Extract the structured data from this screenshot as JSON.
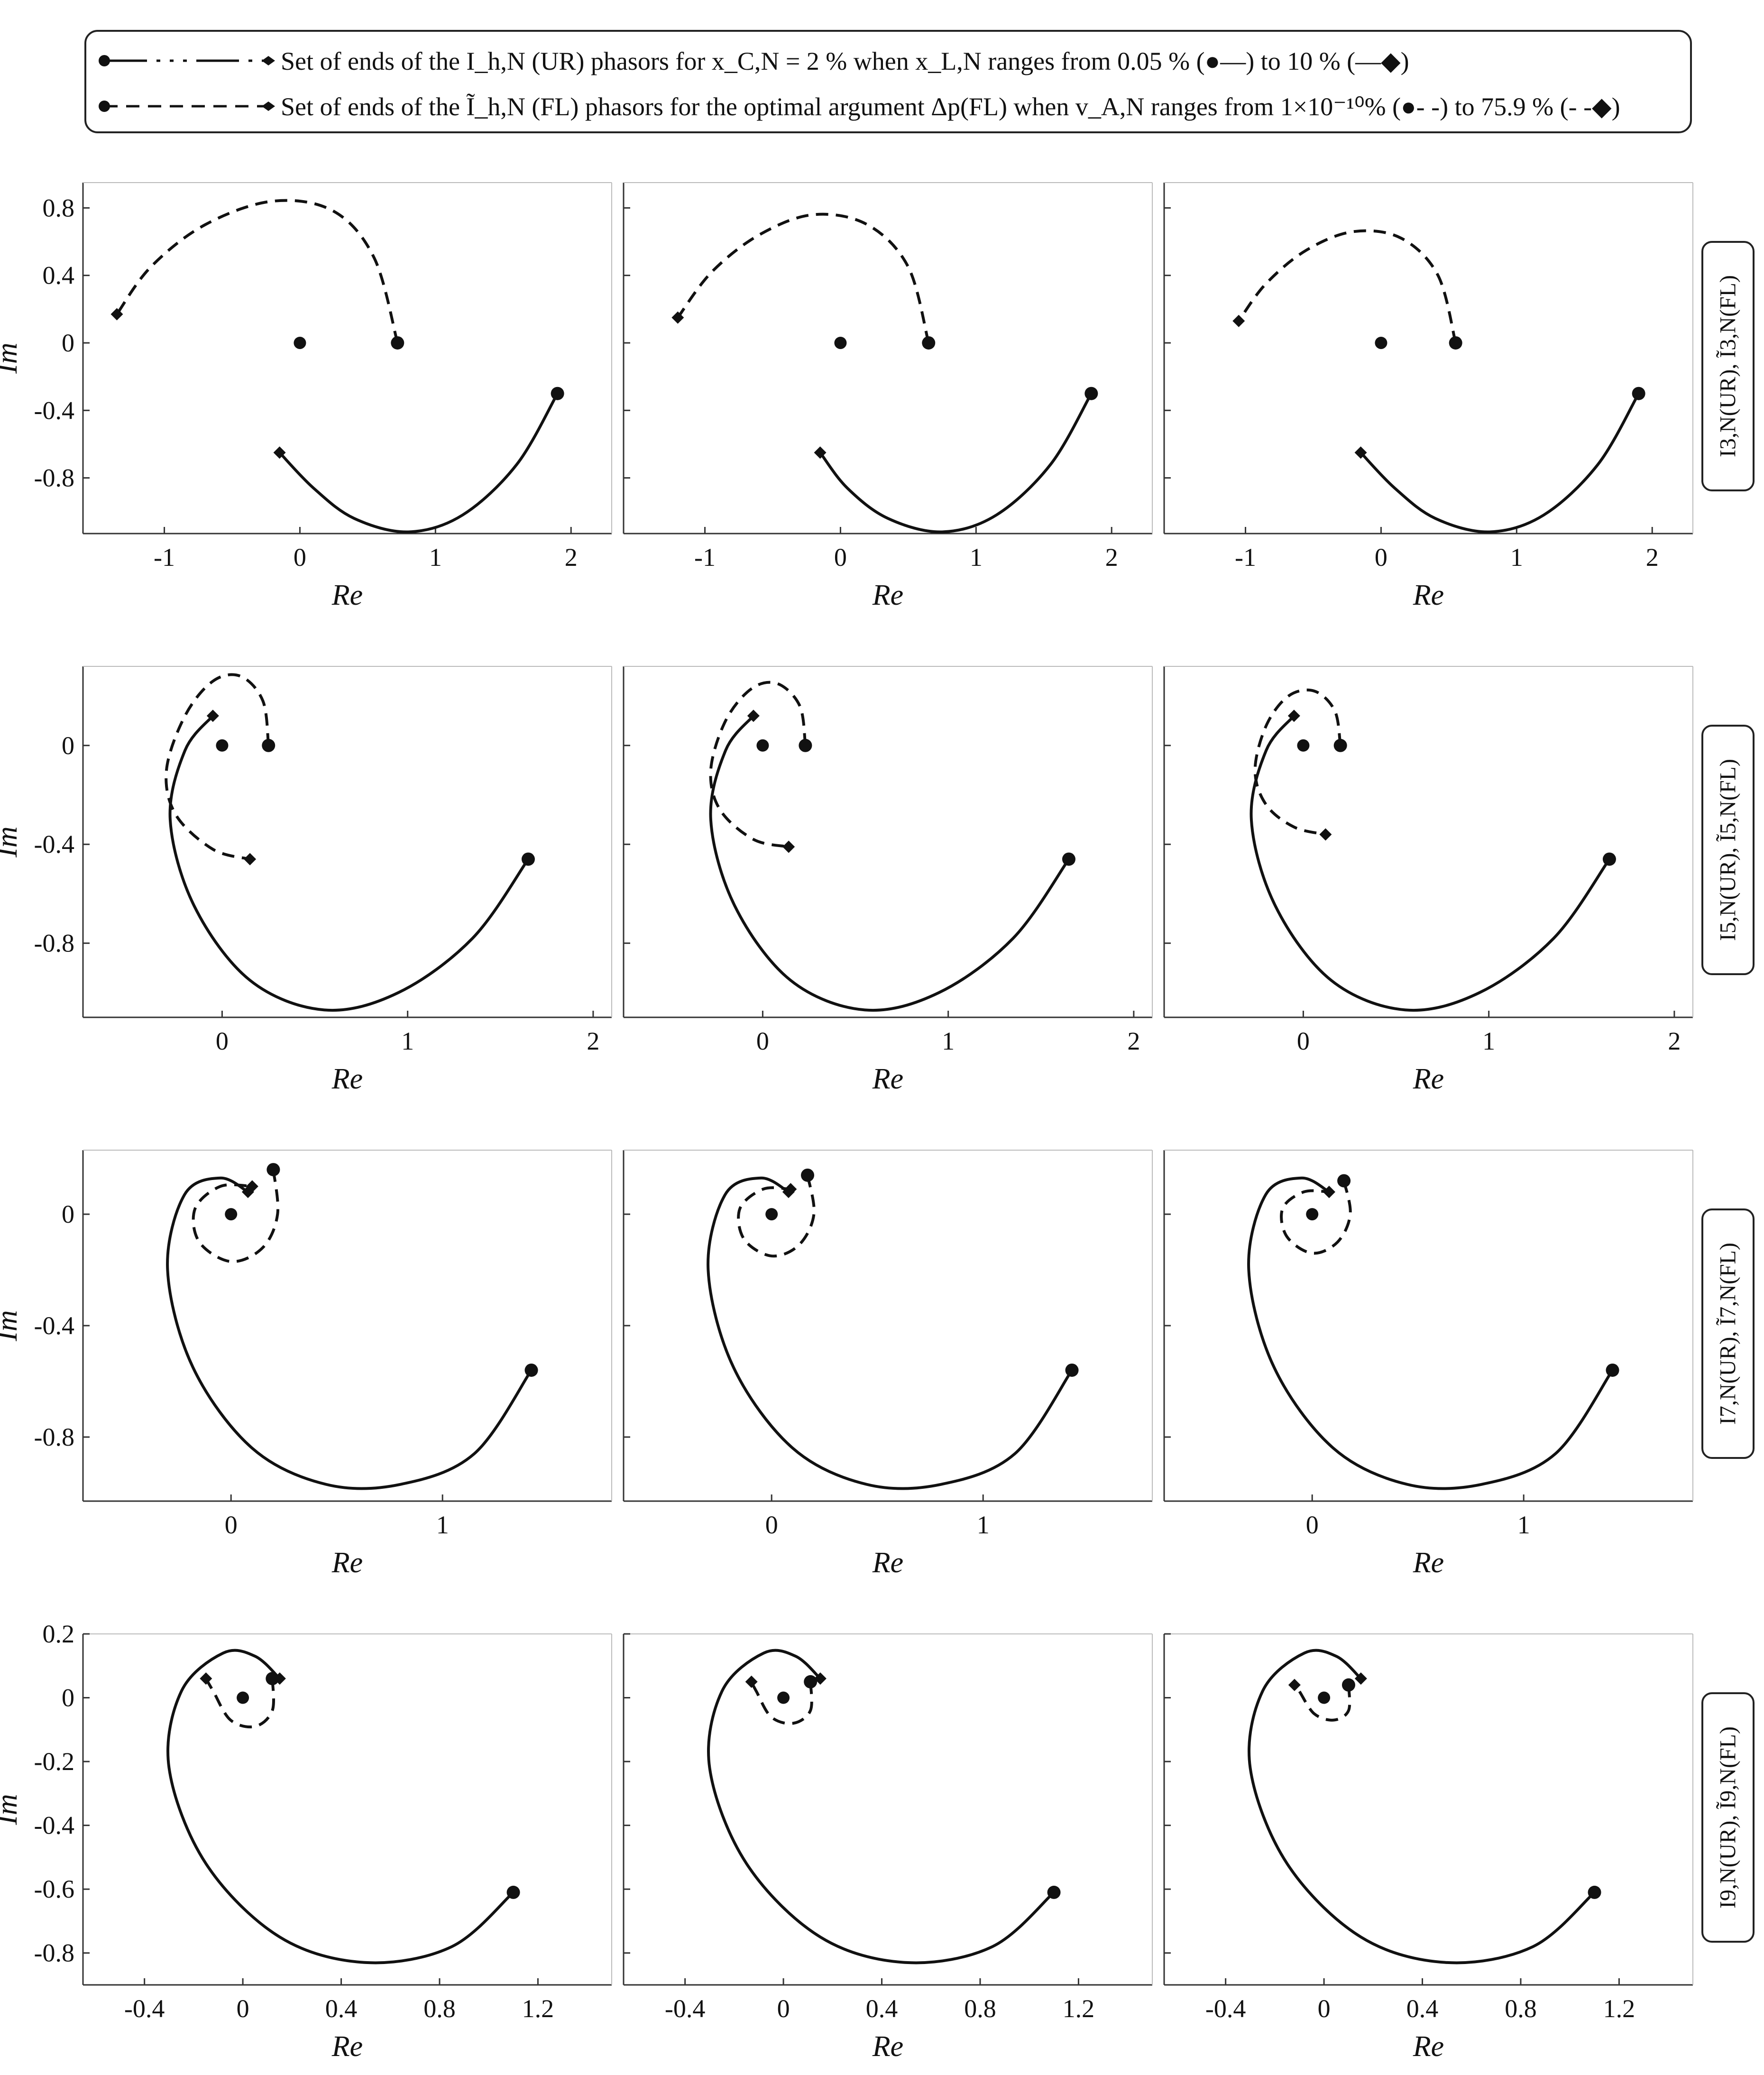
{
  "legend": {
    "row1": "Set of ends of the I_h,N (UR) phasors for x_C,N = 2 % when x_L,N ranges from 0.05 % (●—) to 10 % (—◆)",
    "row2": "Set of ends of the Ĩ_h,N (FL) phasors for the optimal argument Δp(FL) when v_A,N ranges from 1×10⁻¹⁰% (●- -) to 75.9 % (- -◆)"
  },
  "row_labels": [
    "I3,N(UR), Ĩ3,N(FL)",
    "I5,N(UR), Ĩ5,N(FL)",
    "I7,N(UR), Ĩ7,N(FL)",
    "I9,N(UR), Ĩ9,N(FL)"
  ],
  "axis_labels": {
    "x": "Re",
    "y": "Im"
  },
  "rows": [
    {
      "xticks": [
        {
          "v": -1,
          "label": "-1"
        },
        {
          "v": 0,
          "label": "0"
        },
        {
          "v": 1,
          "label": "1"
        },
        {
          "v": 2,
          "label": "2"
        }
      ],
      "yticks": [
        {
          "v": 0.8,
          "label": "0.8"
        },
        {
          "v": 0.4,
          "label": "0.4"
        },
        {
          "v": 0,
          "label": "0"
        },
        {
          "v": -0.4,
          "label": "-0.4"
        },
        {
          "v": -0.8,
          "label": "-0.8"
        }
      ]
    },
    {
      "xticks": [
        {
          "v": 0,
          "label": "0"
        },
        {
          "v": 1,
          "label": "1"
        },
        {
          "v": 2,
          "label": "2"
        }
      ],
      "yticks": [
        {
          "v": 0,
          "label": "0"
        },
        {
          "v": -0.4,
          "label": "-0.4"
        },
        {
          "v": -0.8,
          "label": "-0.8"
        }
      ]
    },
    {
      "xticks": [
        {
          "v": 0,
          "label": "0"
        },
        {
          "v": 1,
          "label": "1"
        }
      ],
      "yticks": [
        {
          "v": 0,
          "label": "0"
        },
        {
          "v": -0.4,
          "label": "-0.4"
        },
        {
          "v": -0.8,
          "label": "-0.8"
        }
      ]
    },
    {
      "xticks": [
        {
          "v": -0.4,
          "label": "-0.4"
        },
        {
          "v": 0,
          "label": "0"
        },
        {
          "v": 0.4,
          "label": "0.4"
        },
        {
          "v": 0.8,
          "label": "0.8"
        },
        {
          "v": 1.2,
          "label": "1.2"
        }
      ],
      "yticks": [
        {
          "v": 0.2,
          "label": "0.2"
        },
        {
          "v": 0,
          "label": "0"
        },
        {
          "v": -0.2,
          "label": "-0.2"
        },
        {
          "v": -0.4,
          "label": "-0.4"
        },
        {
          "v": -0.6,
          "label": "-0.6"
        },
        {
          "v": -0.8,
          "label": "-0.8"
        }
      ]
    }
  ],
  "chart_data": [
    {
      "type": "line",
      "harmonic": 3,
      "column": 1,
      "xlabel": "Re",
      "ylabel": "Im",
      "xlim": [
        -1.6,
        2.3
      ],
      "ylim": [
        -1.13,
        0.95
      ],
      "series": [
        {
          "x": [
            1.9,
            1.6,
            1.2,
            0.8,
            0.4,
            0.1,
            -0.15
          ],
          "y": [
            -0.3,
            -0.72,
            -1.02,
            -1.12,
            -1.04,
            -0.86,
            -0.65
          ]
        },
        {
          "x": [
            0.72,
            0.55,
            0.25,
            -0.2,
            -0.7,
            -1.1,
            -1.35
          ],
          "y": [
            0,
            0.5,
            0.78,
            0.84,
            0.7,
            0.45,
            0.17
          ]
        }
      ]
    },
    {
      "type": "line",
      "harmonic": 3,
      "column": 2,
      "xlabel": "Re",
      "ylabel": "Im",
      "xlim": [
        -1.6,
        2.3
      ],
      "ylim": [
        -1.13,
        0.95
      ],
      "series": [
        {
          "x": [
            1.85,
            1.55,
            1.15,
            0.75,
            0.35,
            0.05,
            -0.15
          ],
          "y": [
            -0.3,
            -0.72,
            -1.02,
            -1.12,
            -1.04,
            -0.86,
            -0.65
          ]
        },
        {
          "x": [
            0.65,
            0.5,
            0.2,
            -0.2,
            -0.6,
            -0.95,
            -1.2
          ],
          "y": [
            0,
            0.45,
            0.7,
            0.76,
            0.64,
            0.42,
            0.15
          ]
        }
      ]
    },
    {
      "type": "line",
      "harmonic": 3,
      "column": 3,
      "xlabel": "Re",
      "ylabel": "Im",
      "xlim": [
        -1.6,
        2.3
      ],
      "ylim": [
        -1.13,
        0.95
      ],
      "series": [
        {
          "x": [
            1.9,
            1.6,
            1.2,
            0.8,
            0.4,
            0.1,
            -0.15
          ],
          "y": [
            -0.3,
            -0.72,
            -1.02,
            -1.12,
            -1.04,
            -0.86,
            -0.65
          ]
        },
        {
          "x": [
            0.55,
            0.42,
            0.15,
            -0.2,
            -0.55,
            -0.85,
            -1.05
          ],
          "y": [
            0,
            0.4,
            0.62,
            0.66,
            0.55,
            0.35,
            0.13
          ]
        }
      ]
    },
    {
      "type": "line",
      "harmonic": 5,
      "column": 1,
      "xlabel": "Re",
      "ylabel": "Im",
      "xlim": [
        -0.75,
        2.1
      ],
      "ylim": [
        -1.1,
        0.32
      ],
      "series": [
        {
          "x": [
            1.65,
            1.35,
            0.95,
            0.55,
            0.15,
            -0.15,
            -0.28,
            -0.2,
            -0.05
          ],
          "y": [
            -0.46,
            -0.78,
            -1.0,
            -1.07,
            -0.95,
            -0.65,
            -0.3,
            -0.02,
            0.12
          ]
        },
        {
          "x": [
            0.25,
            0.22,
            0.1,
            -0.05,
            -0.2,
            -0.3,
            -0.25,
            -0.05,
            0.15
          ],
          "y": [
            0,
            0.18,
            0.28,
            0.26,
            0.12,
            -0.1,
            -0.28,
            -0.42,
            -0.46
          ]
        }
      ]
    },
    {
      "type": "line",
      "harmonic": 5,
      "column": 2,
      "xlabel": "Re",
      "ylabel": "Im",
      "xlim": [
        -0.75,
        2.1
      ],
      "ylim": [
        -1.1,
        0.32
      ],
      "series": [
        {
          "x": [
            1.65,
            1.35,
            0.95,
            0.55,
            0.15,
            -0.15,
            -0.28,
            -0.2,
            -0.05
          ],
          "y": [
            -0.46,
            -0.78,
            -1.0,
            -1.07,
            -0.95,
            -0.65,
            -0.3,
            -0.02,
            0.12
          ]
        },
        {
          "x": [
            0.23,
            0.2,
            0.08,
            -0.06,
            -0.2,
            -0.28,
            -0.23,
            -0.05,
            0.14
          ],
          "y": [
            0,
            0.16,
            0.25,
            0.23,
            0.1,
            -0.1,
            -0.26,
            -0.38,
            -0.41
          ]
        }
      ]
    },
    {
      "type": "line",
      "harmonic": 5,
      "column": 3,
      "xlabel": "Re",
      "ylabel": "Im",
      "xlim": [
        -0.75,
        2.1
      ],
      "ylim": [
        -1.1,
        0.32
      ],
      "series": [
        {
          "x": [
            1.65,
            1.35,
            0.95,
            0.55,
            0.15,
            -0.15,
            -0.28,
            -0.2,
            -0.05
          ],
          "y": [
            -0.46,
            -0.78,
            -1.0,
            -1.07,
            -0.95,
            -0.65,
            -0.3,
            -0.02,
            0.12
          ]
        },
        {
          "x": [
            0.2,
            0.17,
            0.06,
            -0.08,
            -0.2,
            -0.26,
            -0.2,
            -0.05,
            0.12
          ],
          "y": [
            0,
            0.14,
            0.22,
            0.2,
            0.08,
            -0.1,
            -0.24,
            -0.33,
            -0.36
          ]
        }
      ]
    },
    {
      "type": "line",
      "harmonic": 7,
      "column": 1,
      "xlabel": "Re",
      "ylabel": "Im",
      "xlim": [
        -0.7,
        1.8
      ],
      "ylim": [
        -1.03,
        0.23
      ],
      "series": [
        {
          "x": [
            1.42,
            1.15,
            0.8,
            0.45,
            0.1,
            -0.18,
            -0.3,
            -0.22,
            -0.05,
            0.08
          ],
          "y": [
            -0.56,
            -0.86,
            -0.97,
            -0.97,
            -0.84,
            -0.55,
            -0.2,
            0.07,
            0.13,
            0.08
          ]
        },
        {
          "x": [
            0.2,
            0.22,
            0.15,
            0.0,
            -0.15,
            -0.17,
            -0.05,
            0.1
          ],
          "y": [
            0.16,
            0.0,
            -0.12,
            -0.17,
            -0.1,
            0.02,
            0.1,
            0.1
          ]
        }
      ]
    },
    {
      "type": "line",
      "harmonic": 7,
      "column": 2,
      "xlabel": "Re",
      "ylabel": "Im",
      "xlim": [
        -0.7,
        1.8
      ],
      "ylim": [
        -1.03,
        0.23
      ],
      "series": [
        {
          "x": [
            1.42,
            1.15,
            0.8,
            0.45,
            0.1,
            -0.18,
            -0.3,
            -0.22,
            -0.05,
            0.08
          ],
          "y": [
            -0.56,
            -0.86,
            -0.97,
            -0.97,
            -0.84,
            -0.55,
            -0.2,
            0.07,
            0.13,
            0.08
          ]
        },
        {
          "x": [
            0.17,
            0.2,
            0.13,
            0.0,
            -0.13,
            -0.15,
            -0.04,
            0.09
          ],
          "y": [
            0.14,
            0.0,
            -0.11,
            -0.15,
            -0.09,
            0.02,
            0.09,
            0.09
          ]
        }
      ]
    },
    {
      "type": "line",
      "harmonic": 7,
      "column": 3,
      "xlabel": "Re",
      "ylabel": "Im",
      "xlim": [
        -0.7,
        1.8
      ],
      "ylim": [
        -1.03,
        0.23
      ],
      "series": [
        {
          "x": [
            1.42,
            1.15,
            0.8,
            0.45,
            0.1,
            -0.18,
            -0.3,
            -0.22,
            -0.05,
            0.08
          ],
          "y": [
            -0.56,
            -0.86,
            -0.97,
            -0.97,
            -0.84,
            -0.55,
            -0.2,
            0.07,
            0.13,
            0.08
          ]
        },
        {
          "x": [
            0.15,
            0.18,
            0.12,
            0.0,
            -0.12,
            -0.14,
            -0.04,
            0.08
          ],
          "y": [
            0.12,
            0.0,
            -0.1,
            -0.14,
            -0.08,
            0.02,
            0.08,
            0.08
          ]
        }
      ]
    },
    {
      "type": "line",
      "harmonic": 9,
      "column": 1,
      "xlabel": "Re",
      "ylabel": "Im",
      "xlim": [
        -0.65,
        1.5
      ],
      "ylim": [
        -0.9,
        0.2
      ],
      "series": [
        {
          "x": [
            1.1,
            0.85,
            0.5,
            0.15,
            -0.15,
            -0.3,
            -0.25,
            -0.08,
            0.05,
            0.15
          ],
          "y": [
            -0.61,
            -0.78,
            -0.83,
            -0.75,
            -0.52,
            -0.22,
            0.02,
            0.14,
            0.13,
            0.06
          ]
        },
        {
          "x": [
            0.12,
            0.12,
            0.05,
            -0.05,
            -0.12,
            -0.15
          ],
          "y": [
            0.06,
            -0.04,
            -0.09,
            -0.07,
            0.02,
            0.06
          ]
        }
      ]
    },
    {
      "type": "line",
      "harmonic": 9,
      "column": 2,
      "xlabel": "Re",
      "ylabel": "Im",
      "xlim": [
        -0.65,
        1.5
      ],
      "ylim": [
        -0.9,
        0.2
      ],
      "series": [
        {
          "x": [
            1.1,
            0.85,
            0.5,
            0.15,
            -0.15,
            -0.3,
            -0.25,
            -0.08,
            0.05,
            0.15
          ],
          "y": [
            -0.61,
            -0.78,
            -0.83,
            -0.75,
            -0.52,
            -0.22,
            0.02,
            0.14,
            0.13,
            0.06
          ]
        },
        {
          "x": [
            0.11,
            0.11,
            0.04,
            -0.05,
            -0.11,
            -0.13
          ],
          "y": [
            0.05,
            -0.04,
            -0.08,
            -0.06,
            0.02,
            0.05
          ]
        }
      ]
    },
    {
      "type": "line",
      "harmonic": 9,
      "column": 3,
      "xlabel": "Re",
      "ylabel": "Im",
      "xlim": [
        -0.65,
        1.5
      ],
      "ylim": [
        -0.9,
        0.2
      ],
      "series": [
        {
          "x": [
            1.1,
            0.85,
            0.5,
            0.15,
            -0.15,
            -0.3,
            -0.25,
            -0.08,
            0.05,
            0.15
          ],
          "y": [
            -0.61,
            -0.78,
            -0.83,
            -0.75,
            -0.52,
            -0.22,
            0.02,
            0.14,
            0.13,
            0.06
          ]
        },
        {
          "x": [
            0.1,
            0.1,
            0.04,
            -0.04,
            -0.1,
            -0.12
          ],
          "y": [
            0.04,
            -0.04,
            -0.07,
            -0.05,
            0.02,
            0.04
          ]
        }
      ]
    }
  ]
}
